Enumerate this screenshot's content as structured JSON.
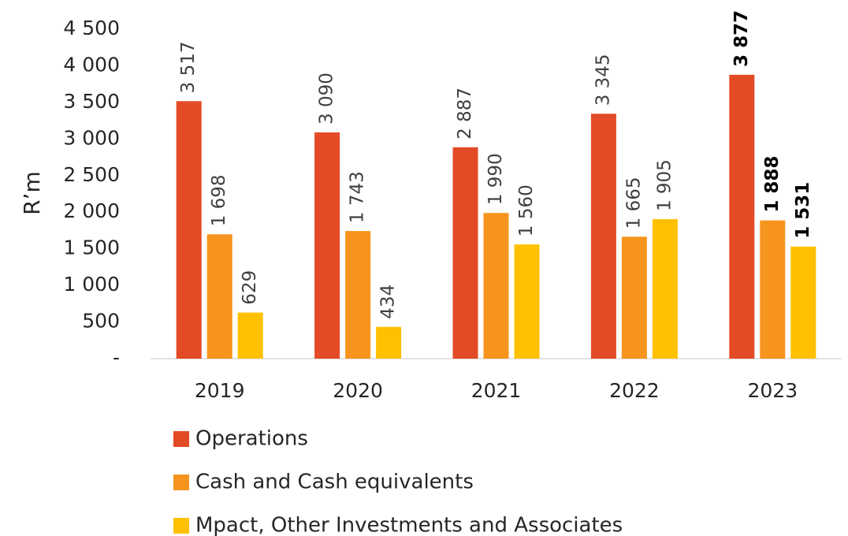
{
  "chart_data": {
    "type": "bar",
    "y_axis_label": "R’m",
    "categories": [
      "2019",
      "2020",
      "2021",
      "2022",
      "2023"
    ],
    "series": [
      {
        "name": "Operations",
        "color": "#e34a26",
        "values": [
          3517,
          3090,
          2887,
          3345,
          3877
        ],
        "value_labels": [
          "3 517",
          "3 090",
          "2 887",
          "3 345",
          "3 877"
        ]
      },
      {
        "name": "Cash and Cash equivalents",
        "color": "#f7941d",
        "values": [
          1698,
          1743,
          1990,
          1665,
          1888
        ],
        "value_labels": [
          "1 698",
          "1 743",
          "1 990",
          "1 665",
          "1 888"
        ]
      },
      {
        "name": "Mpact, Other Investments and Associates",
        "color": "#ffc000",
        "values": [
          629,
          434,
          1560,
          1905,
          1531
        ],
        "value_labels": [
          "629",
          "434",
          "1 560",
          "1 905",
          "1 531"
        ]
      }
    ],
    "ylim": [
      0,
      4500
    ],
    "yticks": [
      {
        "value": 0,
        "label": "-"
      },
      500,
      {
        "value": 1000,
        "label": "1 000"
      },
      {
        "value": 1500,
        "label": "1 500"
      },
      {
        "value": 2000,
        "label": "2 000"
      },
      {
        "value": 2500,
        "label": "2 500"
      },
      {
        "value": 3000,
        "label": "3 000"
      },
      {
        "value": 3500,
        "label": "3 500"
      },
      {
        "value": 4000,
        "label": "4 000"
      },
      {
        "value": 4500,
        "label": "4 500"
      }
    ],
    "grid": false,
    "legend": "bottom"
  }
}
